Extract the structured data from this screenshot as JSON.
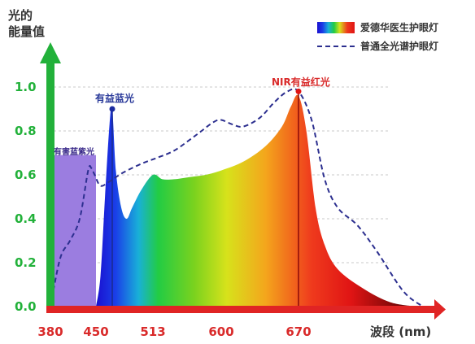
{
  "chart_data": {
    "type": "area",
    "ylabel_lines": [
      "光的",
      "能量值"
    ],
    "xlabel": "波段 (nm)",
    "x_ticks": [
      380,
      450,
      513,
      600,
      670
    ],
    "y_ticks": [
      "0.0",
      "0.2",
      "0.4",
      "0.6",
      "0.8",
      "1.0"
    ],
    "xlim": [
      380,
      765
    ],
    "ylim": [
      0,
      1.0
    ],
    "grid": true,
    "legend_position": "top-right",
    "colors": {
      "y_axis": "#22b13a",
      "x_axis": "#e02424",
      "dashed_line": "#2c2f8f",
      "harmful_band": "#9b7de0",
      "peak_line": "#1b2b8f"
    },
    "series": [
      {
        "name": "爱德华医生护眼灯",
        "style": "spectrum-filled-area",
        "x": [
          450,
          455,
          460,
          465,
          468,
          472,
          478,
          484,
          490,
          500,
          513,
          525,
          540,
          560,
          580,
          600,
          620,
          640,
          655,
          663,
          670,
          676,
          683,
          690,
          700,
          720,
          740,
          760
        ],
        "y": [
          0.0,
          0.14,
          0.5,
          0.83,
          0.9,
          0.62,
          0.45,
          0.4,
          0.45,
          0.53,
          0.6,
          0.58,
          0.58,
          0.59,
          0.6,
          0.62,
          0.66,
          0.73,
          0.82,
          0.91,
          0.96,
          0.8,
          0.45,
          0.28,
          0.17,
          0.08,
          0.02,
          0.0
        ]
      },
      {
        "name": "普通全光谱护眼灯",
        "style": "dashed-line",
        "x": [
          380,
          395,
          410,
          425,
          438,
          443,
          448,
          455,
          465,
          480,
          500,
          520,
          540,
          560,
          575,
          590,
          600,
          610,
          620,
          635,
          648,
          660,
          670,
          680,
          690,
          700,
          715,
          730,
          750,
          765
        ],
        "y": [
          0.0,
          0.22,
          0.3,
          0.4,
          0.62,
          0.63,
          0.6,
          0.55,
          0.57,
          0.61,
          0.65,
          0.68,
          0.71,
          0.76,
          0.8,
          0.84,
          0.85,
          0.83,
          0.82,
          0.86,
          0.93,
          0.98,
          0.98,
          0.85,
          0.58,
          0.45,
          0.37,
          0.25,
          0.07,
          0.0
        ]
      }
    ],
    "regions": [
      {
        "label": "有害蓝紫光",
        "x_start": 380,
        "x_end": 450,
        "y": 0.69
      }
    ],
    "annotations": [
      {
        "label": "有益蓝光",
        "x": 468,
        "y": 0.9
      },
      {
        "label": "NIR有益红光",
        "x": 670,
        "y": 0.98
      }
    ]
  }
}
